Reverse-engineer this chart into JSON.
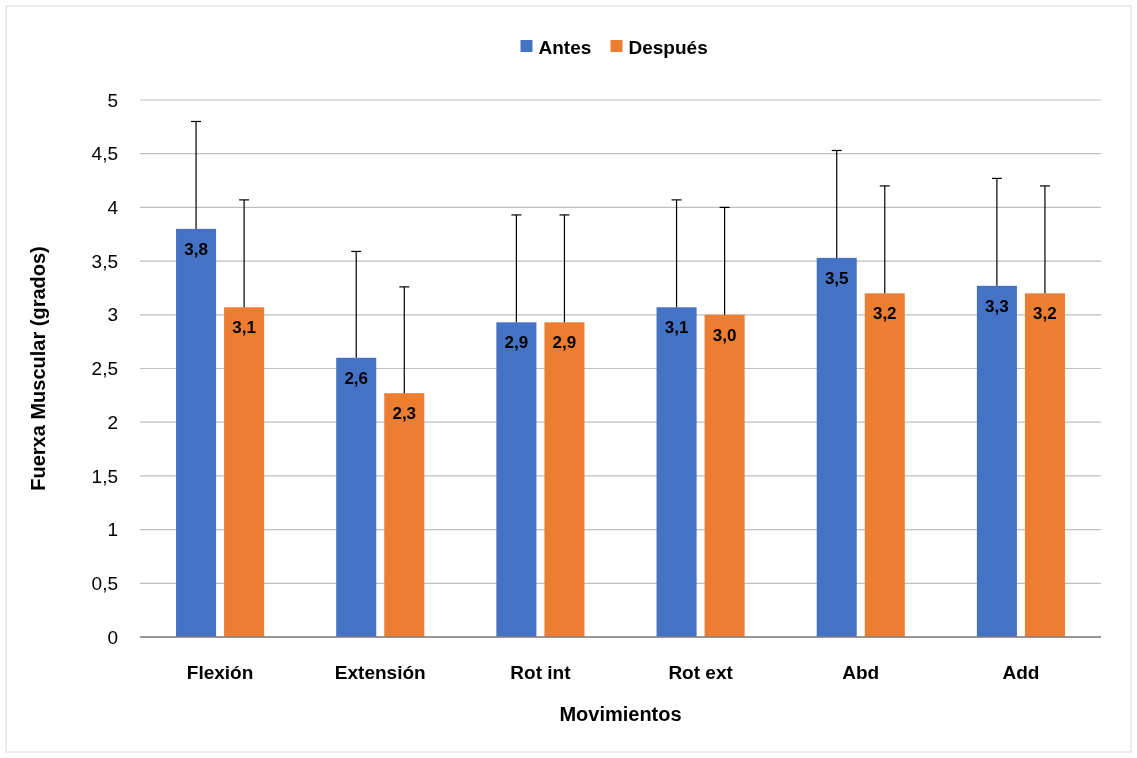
{
  "chart_data": {
    "type": "bar",
    "xlabel": "Movimientos",
    "ylabel": "Fuerxa Muscular (grados)",
    "categories": [
      "Flexión",
      "Extensión",
      "Rot int",
      "Rot ext",
      "Abd",
      "Add"
    ],
    "series": [
      {
        "name": "Antes",
        "color": "#4472c4",
        "values": [
          3.8,
          2.6,
          2.93,
          3.07,
          3.53,
          3.27
        ],
        "value_labels": [
          "3,8",
          "2,6",
          "2,9",
          "3,1",
          "3,5",
          "3,3"
        ],
        "errors": [
          [
            3.8,
            4.8
          ],
          [
            2.6,
            3.59
          ],
          [
            2.93,
            3.93
          ],
          [
            3.07,
            4.07
          ],
          [
            3.53,
            4.53
          ],
          [
            3.27,
            4.27
          ]
        ]
      },
      {
        "name": "Después",
        "color": "#ed7d31",
        "values": [
          3.07,
          2.27,
          2.93,
          3.0,
          3.2,
          3.2
        ],
        "value_labels": [
          "3,1",
          "2,3",
          "2,9",
          "3,0",
          "3,2",
          "3,2"
        ],
        "errors": [
          [
            3.07,
            4.07
          ],
          [
            2.27,
            3.26
          ],
          [
            2.93,
            3.93
          ],
          [
            3.0,
            4.0
          ],
          [
            3.2,
            4.2
          ],
          [
            3.2,
            4.2
          ]
        ]
      }
    ],
    "ylim": [
      0,
      5
    ],
    "yticks": [
      0,
      {
        "value": 0.5,
        "label": "0,5"
      },
      1,
      {
        "value": 1.5,
        "label": "1,5"
      },
      2,
      {
        "value": 2.5,
        "label": "2,5"
      },
      3,
      {
        "value": 3.5,
        "label": "3,5"
      },
      4,
      {
        "value": 4.5,
        "label": "4,5"
      },
      5
    ],
    "grid": "y",
    "legend": "top"
  }
}
